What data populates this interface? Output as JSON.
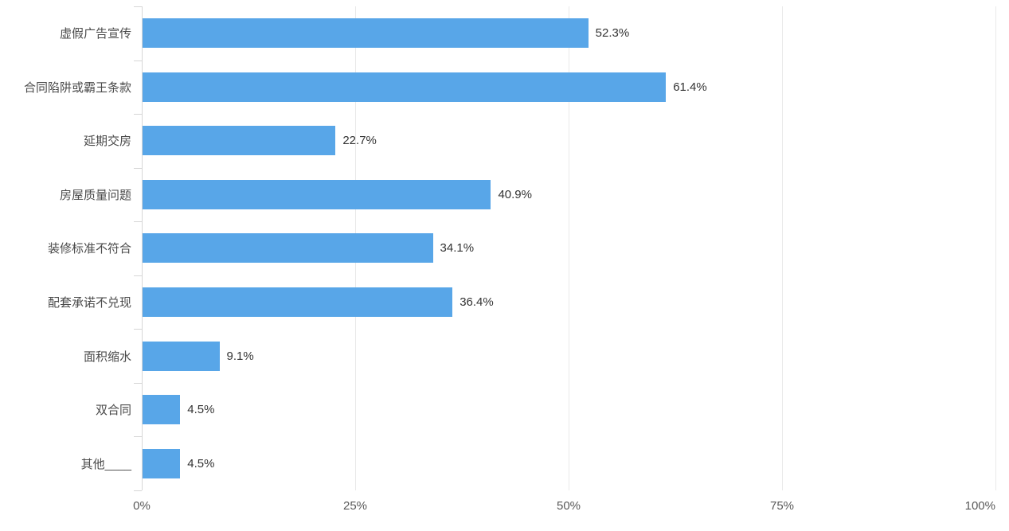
{
  "chart_data": {
    "type": "bar",
    "orientation": "horizontal",
    "title": "",
    "xlabel": "",
    "ylabel": "",
    "categories": [
      "虚假广告宣传",
      "合同陷阱或霸王条款",
      "延期交房",
      "房屋质量问题",
      "装修标准不符合",
      "配套承诺不兑现",
      "面积缩水",
      "双合同",
      "其他____"
    ],
    "values": [
      52.3,
      61.4,
      22.7,
      40.9,
      34.1,
      36.4,
      9.1,
      4.5,
      4.5
    ],
    "value_labels": [
      "52.3%",
      "61.4%",
      "22.7%",
      "40.9%",
      "34.1%",
      "36.4%",
      "9.1%",
      "4.5%",
      "4.5%"
    ],
    "x_ticks": [
      {
        "label": "0%",
        "value": 0
      },
      {
        "label": "25%",
        "value": 25
      },
      {
        "label": "50%",
        "value": 50
      },
      {
        "label": "75%",
        "value": 75
      },
      {
        "label": "100%",
        "value": 100
      }
    ],
    "xlim": [
      0,
      100
    ],
    "grid": true,
    "legend": "none",
    "colors": {
      "bar": "#58a6e8",
      "axis_line": "#d6d6d6",
      "gridline": "#e9e9e9",
      "category_label": "#4a4a4a",
      "value_label": "#333333",
      "tick_label": "#595959",
      "background": "#ffffff"
    }
  }
}
